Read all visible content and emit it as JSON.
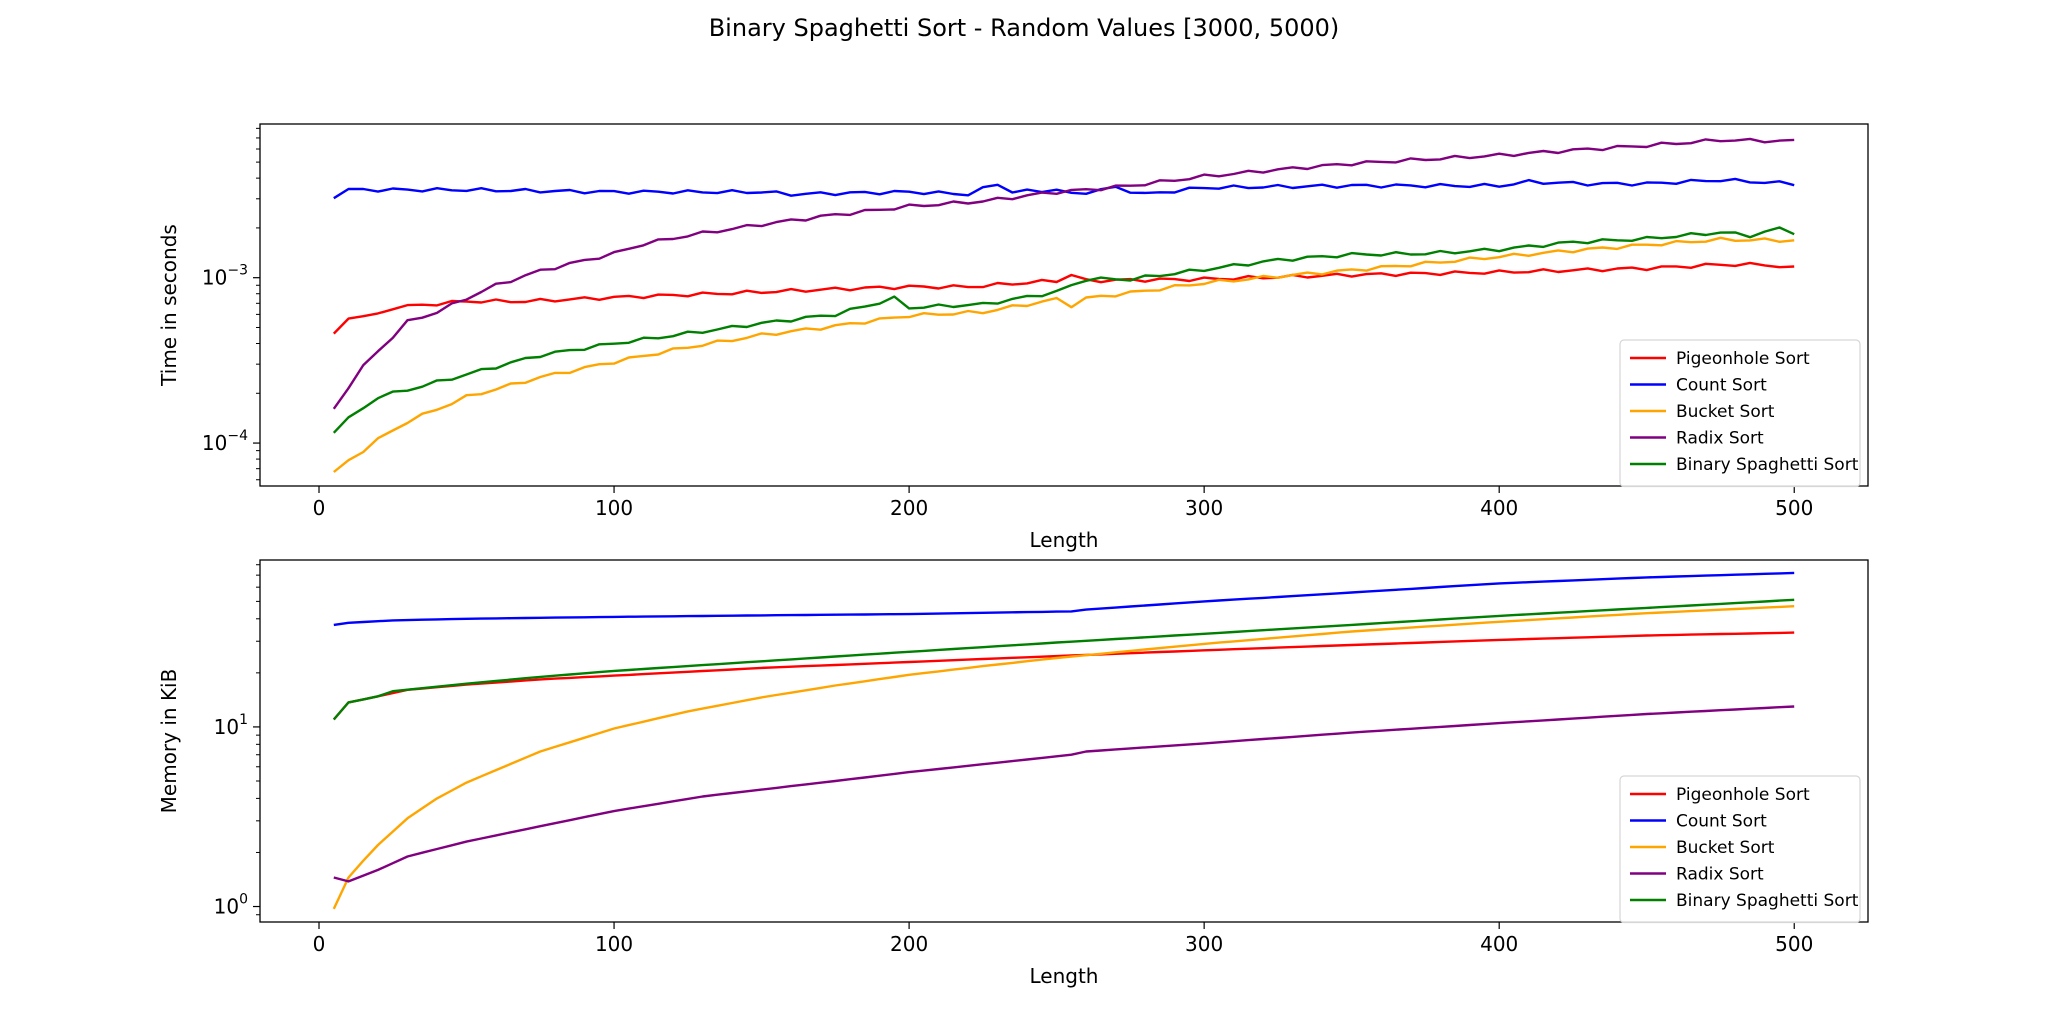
{
  "figure": {
    "title": "Binary Spaghetti Sort - Random Values [3000, 5000)"
  },
  "chart_data": [
    {
      "type": "line",
      "title": "",
      "xlabel": "Length",
      "ylabel": "Time in seconds",
      "yscale": "log",
      "xlim": [
        -20,
        525
      ],
      "ylim": [
        5.5e-05,
        0.0085
      ],
      "xticks": [
        0,
        100,
        200,
        300,
        400,
        500
      ],
      "yticks": [
        {
          "value": 0.001,
          "base": "10",
          "exp": "−3"
        },
        {
          "value": 0.0001,
          "base": "10",
          "exp": "−4"
        }
      ],
      "grid": false,
      "legend": "lower-right",
      "x_series": {
        "start": 5,
        "end": 500,
        "step": 5
      },
      "series": [
        {
          "name": "Pigeonhole Sort",
          "color": "#ff0000",
          "anchors": [
            [
              5,
              0.00045
            ],
            [
              10,
              0.00058
            ],
            [
              15,
              0.00058
            ],
            [
              20,
              0.0006
            ],
            [
              25,
              0.00066
            ],
            [
              50,
              0.00072
            ],
            [
              70,
              0.00072
            ],
            [
              100,
              0.00076
            ],
            [
              150,
              0.00082
            ],
            [
              180,
              0.00086
            ],
            [
              200,
              0.00088
            ],
            [
              220,
              0.00088
            ],
            [
              250,
              0.00096
            ],
            [
              255,
              0.00104
            ],
            [
              260,
              0.00096
            ],
            [
              300,
              0.00098
            ],
            [
              350,
              0.00104
            ],
            [
              400,
              0.00108
            ],
            [
              450,
              0.00114
            ],
            [
              475,
              0.0012
            ],
            [
              490,
              0.0012
            ],
            [
              500,
              0.00114
            ]
          ]
        },
        {
          "name": "Count Sort",
          "color": "#0000ff",
          "anchors": [
            [
              5,
              0.0031
            ],
            [
              10,
              0.0034
            ],
            [
              50,
              0.0034
            ],
            [
              100,
              0.0033
            ],
            [
              150,
              0.0033
            ],
            [
              160,
              0.0032
            ],
            [
              200,
              0.0033
            ],
            [
              220,
              0.0032
            ],
            [
              230,
              0.0037
            ],
            [
              235,
              0.0033
            ],
            [
              250,
              0.0034
            ],
            [
              255,
              0.0032
            ],
            [
              270,
              0.0035
            ],
            [
              280,
              0.0032
            ],
            [
              300,
              0.0035
            ],
            [
              350,
              0.0036
            ],
            [
              400,
              0.0036
            ],
            [
              410,
              0.0038
            ],
            [
              430,
              0.0037
            ],
            [
              450,
              0.0037
            ],
            [
              475,
              0.0039
            ],
            [
              500,
              0.0037
            ]
          ]
        },
        {
          "name": "Bucket Sort",
          "color": "#ffa500",
          "anchors": [
            [
              5,
              6.6e-05
            ],
            [
              10,
              7.8e-05
            ],
            [
              20,
              0.000105
            ],
            [
              30,
              0.000135
            ],
            [
              50,
              0.00019
            ],
            [
              75,
              0.00025
            ],
            [
              100,
              0.00031
            ],
            [
              125,
              0.00038
            ],
            [
              150,
              0.00045
            ],
            [
              175,
              0.00051
            ],
            [
              200,
              0.00059
            ],
            [
              225,
              0.00062
            ],
            [
              250,
              0.00074
            ],
            [
              255,
              0.00068
            ],
            [
              260,
              0.00075
            ],
            [
              275,
              0.00081
            ],
            [
              300,
              0.00093
            ],
            [
              325,
              0.00102
            ],
            [
              350,
              0.00111
            ],
            [
              375,
              0.00122
            ],
            [
              400,
              0.00134
            ],
            [
              425,
              0.00146
            ],
            [
              450,
              0.00158
            ],
            [
              475,
              0.0017
            ],
            [
              500,
              0.00168
            ]
          ]
        },
        {
          "name": "Radix Sort",
          "color": "#800080",
          "anchors": [
            [
              5,
              0.00016
            ],
            [
              10,
              0.00022
            ],
            [
              15,
              0.00029
            ],
            [
              20,
              0.00036
            ],
            [
              30,
              0.00054
            ],
            [
              40,
              0.00062
            ],
            [
              50,
              0.00075
            ],
            [
              60,
              0.0009
            ],
            [
              75,
              0.0011
            ],
            [
              100,
              0.0014
            ],
            [
              110,
              0.0016
            ],
            [
              125,
              0.0018
            ],
            [
              150,
              0.0021
            ],
            [
              175,
              0.0024
            ],
            [
              200,
              0.0027
            ],
            [
              225,
              0.0029
            ],
            [
              250,
              0.0033
            ],
            [
              260,
              0.0034
            ],
            [
              275,
              0.0036
            ],
            [
              300,
              0.0041
            ],
            [
              325,
              0.0045
            ],
            [
              350,
              0.0049
            ],
            [
              375,
              0.0052
            ],
            [
              400,
              0.0055
            ],
            [
              425,
              0.0059
            ],
            [
              450,
              0.0063
            ],
            [
              475,
              0.0068
            ],
            [
              500,
              0.0067
            ]
          ]
        },
        {
          "name": "Binary Spaghetti Sort",
          "color": "#008000",
          "anchors": [
            [
              5,
              0.000118
            ],
            [
              10,
              0.00014
            ],
            [
              20,
              0.00019
            ],
            [
              30,
              0.00021
            ],
            [
              50,
              0.00026
            ],
            [
              75,
              0.00034
            ],
            [
              100,
              0.0004
            ],
            [
              125,
              0.00046
            ],
            [
              150,
              0.00053
            ],
            [
              175,
              0.0006
            ],
            [
              195,
              0.00075
            ],
            [
              200,
              0.00066
            ],
            [
              225,
              0.00069
            ],
            [
              250,
              0.00082
            ],
            [
              260,
              0.00098
            ],
            [
              275,
              0.00098
            ],
            [
              300,
              0.00112
            ],
            [
              325,
              0.00128
            ],
            [
              350,
              0.00138
            ],
            [
              375,
              0.0014
            ],
            [
              400,
              0.00148
            ],
            [
              425,
              0.00164
            ],
            [
              450,
              0.00172
            ],
            [
              475,
              0.00188
            ],
            [
              485,
              0.0018
            ],
            [
              495,
              0.00198
            ],
            [
              500,
              0.00188
            ]
          ]
        }
      ]
    },
    {
      "type": "line",
      "title": "",
      "xlabel": "Length",
      "ylabel": "Memory in KiB",
      "yscale": "log",
      "xlim": [
        -20,
        525
      ],
      "ylim": [
        0.82,
        85
      ],
      "xticks": [
        0,
        100,
        200,
        300,
        400,
        500
      ],
      "yticks": [
        {
          "value": 10,
          "base": "10",
          "exp": "1"
        },
        {
          "value": 1,
          "base": "10",
          "exp": "0"
        }
      ],
      "grid": false,
      "legend": "lower-right",
      "x_series": {
        "start": 5,
        "end": 500,
        "step": 5
      },
      "series": [
        {
          "name": "Pigeonhole Sort",
          "color": "#ff0000",
          "anchors": [
            [
              5,
              11
            ],
            [
              10,
              13.7
            ],
            [
              20,
              14.8
            ],
            [
              30,
              16.1
            ],
            [
              50,
              17.2
            ],
            [
              75,
              18.4
            ],
            [
              100,
              19.3
            ],
            [
              150,
              21.3
            ],
            [
              200,
              23
            ],
            [
              250,
              24.8
            ],
            [
              300,
              26.7
            ],
            [
              350,
              28.6
            ],
            [
              400,
              30.5
            ],
            [
              450,
              32.3
            ],
            [
              500,
              33.5
            ]
          ]
        },
        {
          "name": "Count Sort",
          "color": "#0000ff",
          "anchors": [
            [
              5,
              37
            ],
            [
              10,
              38
            ],
            [
              25,
              39.2
            ],
            [
              50,
              40
            ],
            [
              100,
              41
            ],
            [
              150,
              41.8
            ],
            [
              200,
              42.5
            ],
            [
              255,
              44
            ],
            [
              260,
              45
            ],
            [
              300,
              50
            ],
            [
              350,
              56
            ],
            [
              400,
              63
            ],
            [
              450,
              68
            ],
            [
              500,
              72
            ]
          ]
        },
        {
          "name": "Bucket Sort",
          "color": "#ffa500",
          "anchors": [
            [
              5,
              0.97
            ],
            [
              10,
              1.45
            ],
            [
              15,
              1.8
            ],
            [
              20,
              2.2
            ],
            [
              30,
              3.1
            ],
            [
              40,
              4
            ],
            [
              50,
              4.9
            ],
            [
              75,
              7.3
            ],
            [
              100,
              9.8
            ],
            [
              125,
              12.2
            ],
            [
              150,
              14.6
            ],
            [
              175,
              17
            ],
            [
              200,
              19.5
            ],
            [
              225,
              21.8
            ],
            [
              250,
              24.2
            ],
            [
              300,
              29
            ],
            [
              350,
              34
            ],
            [
              400,
              38.5
            ],
            [
              450,
              43
            ],
            [
              500,
              47
            ]
          ]
        },
        {
          "name": "Radix Sort",
          "color": "#800080",
          "anchors": [
            [
              5,
              1.45
            ],
            [
              10,
              1.38
            ],
            [
              20,
              1.6
            ],
            [
              30,
              1.9
            ],
            [
              50,
              2.3
            ],
            [
              75,
              2.8
            ],
            [
              100,
              3.4
            ],
            [
              130,
              4.1
            ],
            [
              175,
              5
            ],
            [
              200,
              5.6
            ],
            [
              255,
              7
            ],
            [
              260,
              7.3
            ],
            [
              300,
              8.1
            ],
            [
              350,
              9.3
            ],
            [
              400,
              10.5
            ],
            [
              450,
              11.8
            ],
            [
              500,
              13
            ]
          ]
        },
        {
          "name": "Binary Spaghetti Sort",
          "color": "#008000",
          "anchors": [
            [
              5,
              11
            ],
            [
              10,
              13.7
            ],
            [
              20,
              14.8
            ],
            [
              25,
              15.8
            ],
            [
              50,
              17.4
            ],
            [
              75,
              19
            ],
            [
              100,
              20.5
            ],
            [
              150,
              23.2
            ],
            [
              200,
              26.2
            ],
            [
              250,
              29.5
            ],
            [
              300,
              33
            ],
            [
              350,
              37
            ],
            [
              400,
              41.5
            ],
            [
              450,
              46
            ],
            [
              500,
              51
            ]
          ]
        }
      ]
    }
  ]
}
